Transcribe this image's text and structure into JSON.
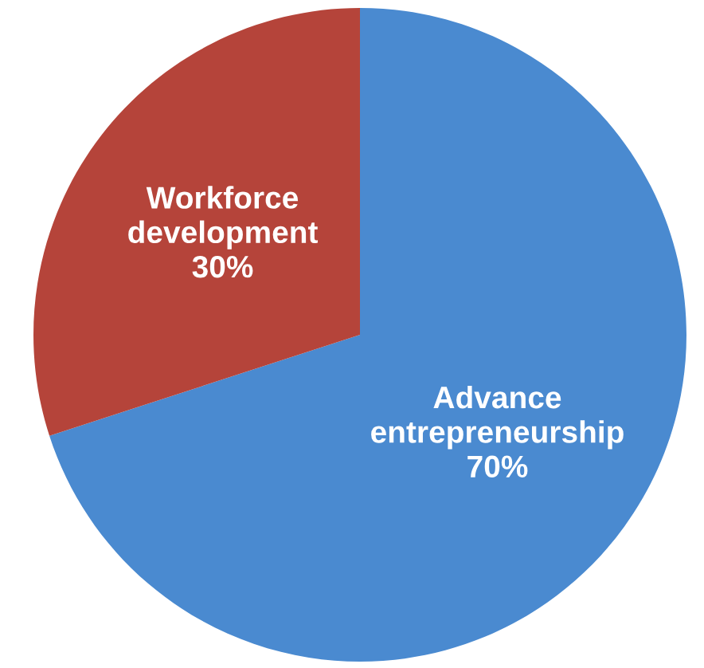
{
  "chart_data": {
    "type": "pie",
    "categories": [
      "Advance entrepreneurship",
      "Workforce development"
    ],
    "values": [
      70,
      30
    ],
    "colors": [
      "#4a8ad0",
      "#b5443a"
    ],
    "value_labels": [
      "70%",
      "30%"
    ]
  }
}
